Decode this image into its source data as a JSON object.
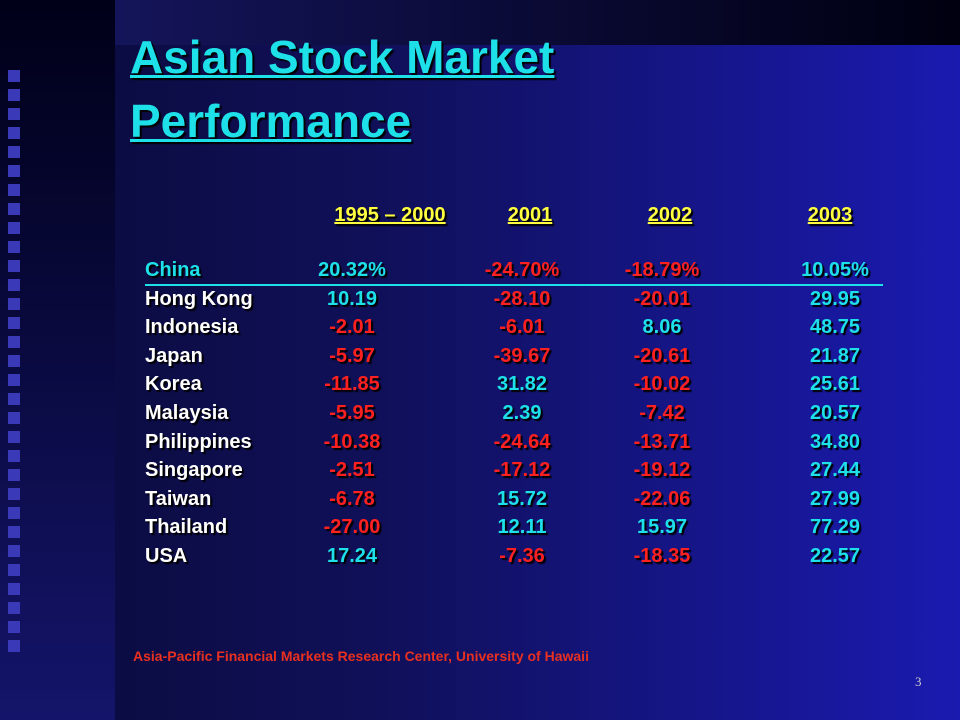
{
  "title": [
    "Asian Stock Market",
    "Performance"
  ],
  "table": {
    "header": [
      "1995 – 2000",
      "2001",
      "2002",
      "2003"
    ],
    "rows": [
      [
        "China",
        "20.32%",
        "-24.70%",
        "-18.79%",
        "10.05%"
      ],
      [
        "Hong Kong",
        "10.19",
        "-28.10",
        "-20.01",
        "29.95"
      ],
      [
        "Indonesia",
        "-2.01",
        "-6.01",
        "8.06",
        "48.75"
      ],
      [
        "Japan",
        "-5.97",
        "-39.67",
        "-20.61",
        "21.87"
      ],
      [
        "Korea",
        "-11.85",
        "31.82",
        "-10.02",
        "25.61"
      ],
      [
        "Malaysia",
        "-5.95",
        "2.39",
        "-7.42",
        "20.57"
      ],
      [
        "Philippines",
        "-10.38",
        "-24.64",
        "-13.71",
        "34.80"
      ],
      [
        "Singapore",
        "-2.51",
        "-17.12",
        "-19.12",
        "27.44"
      ],
      [
        "Taiwan",
        "-6.78",
        "15.72",
        "-22.06",
        "27.99"
      ],
      [
        "Thailand",
        "-27.00",
        "12.11",
        "15.97",
        "77.29"
      ],
      [
        "USA",
        "17.24",
        "-7.36",
        "-18.35",
        "22.57"
      ]
    ]
  },
  "source": "Asia-Pacific Financial Markets Research Center, University of Hawaii",
  "page_number": "3"
}
